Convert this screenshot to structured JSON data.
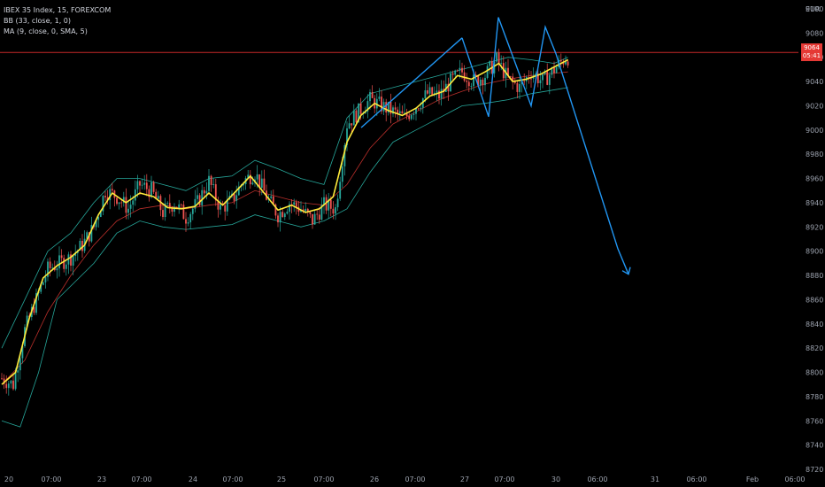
{
  "legend": {
    "symbol": "IBEX 35 Index, 15, FOREXCOM",
    "bb": "BB (33, close, 1, 0)",
    "ma": "MA (9, close, 0, SMA, 5)"
  },
  "currency": "EUR",
  "last_price": {
    "value": "9064",
    "countdown": "05:41"
  },
  "colors": {
    "up": "#26a69a",
    "down": "#ef5350",
    "ma": "#ffeb3b",
    "bb_band": "#26a69a",
    "bb_basis": "#e53935",
    "drawing": "#2196f3",
    "price_line": "#c62828",
    "axis_text": "#9ba1ad"
  },
  "chart_data": {
    "type": "candlestick",
    "ylim": [
      8720,
      9100
    ],
    "y_ticks": [
      9100,
      9080,
      9060,
      9040,
      9020,
      9000,
      8980,
      8960,
      8940,
      8920,
      8900,
      8880,
      8860,
      8840,
      8820,
      8800,
      8780,
      8760,
      8740,
      8720
    ],
    "x_ticks": [
      "20",
      "07:00",
      "23",
      "07:00",
      "24",
      "07:00",
      "25",
      "07:00",
      "26",
      "07:00",
      "27",
      "07:00",
      "30",
      "06:00",
      "31",
      "06:00",
      "Feb",
      "06:00"
    ],
    "last_price": 9064,
    "price_path": [
      [
        0,
        8795
      ],
      [
        5,
        8790
      ],
      [
        10,
        8835
      ],
      [
        15,
        8860
      ],
      [
        20,
        8885
      ],
      [
        25,
        8890
      ],
      [
        30,
        8895
      ],
      [
        35,
        8905
      ],
      [
        40,
        8920
      ],
      [
        45,
        8950
      ],
      [
        50,
        8945
      ],
      [
        55,
        8935
      ],
      [
        60,
        8955
      ],
      [
        65,
        8950
      ],
      [
        70,
        8932
      ],
      [
        75,
        8940
      ],
      [
        80,
        8928
      ],
      [
        85,
        8940
      ],
      [
        90,
        8958
      ],
      [
        95,
        8935
      ],
      [
        100,
        8942
      ],
      [
        105,
        8958
      ],
      [
        110,
        8965
      ],
      [
        115,
        8945
      ],
      [
        120,
        8930
      ],
      [
        125,
        8940
      ],
      [
        130,
        8935
      ],
      [
        135,
        8925
      ],
      [
        140,
        8938
      ],
      [
        145,
        8935
      ],
      [
        150,
        9005
      ],
      [
        155,
        9015
      ],
      [
        160,
        9025
      ],
      [
        165,
        9020
      ],
      [
        170,
        9015
      ],
      [
        175,
        9010
      ],
      [
        180,
        9020
      ],
      [
        185,
        9030
      ],
      [
        190,
        9028
      ],
      [
        195,
        9040
      ],
      [
        200,
        9048
      ],
      [
        205,
        9040
      ],
      [
        210,
        9045
      ],
      [
        215,
        9058
      ],
      [
        220,
        9042
      ],
      [
        225,
        9035
      ],
      [
        230,
        9048
      ],
      [
        235,
        9040
      ],
      [
        240,
        9050
      ],
      [
        245,
        9060
      ]
    ],
    "ma_points": [
      [
        0,
        8790
      ],
      [
        6,
        8800
      ],
      [
        12,
        8845
      ],
      [
        18,
        8878
      ],
      [
        24,
        8888
      ],
      [
        30,
        8895
      ],
      [
        36,
        8905
      ],
      [
        42,
        8930
      ],
      [
        48,
        8948
      ],
      [
        54,
        8940
      ],
      [
        60,
        8948
      ],
      [
        66,
        8945
      ],
      [
        72,
        8936
      ],
      [
        78,
        8935
      ],
      [
        84,
        8937
      ],
      [
        90,
        8948
      ],
      [
        96,
        8938
      ],
      [
        102,
        8950
      ],
      [
        108,
        8962
      ],
      [
        114,
        8948
      ],
      [
        120,
        8934
      ],
      [
        126,
        8938
      ],
      [
        132,
        8932
      ],
      [
        138,
        8935
      ],
      [
        144,
        8945
      ],
      [
        150,
        8990
      ],
      [
        156,
        9012
      ],
      [
        162,
        9022
      ],
      [
        168,
        9016
      ],
      [
        174,
        9012
      ],
      [
        180,
        9018
      ],
      [
        186,
        9028
      ],
      [
        192,
        9032
      ],
      [
        198,
        9045
      ],
      [
        204,
        9042
      ],
      [
        210,
        9048
      ],
      [
        216,
        9055
      ],
      [
        222,
        9040
      ],
      [
        228,
        9042
      ],
      [
        234,
        9046
      ],
      [
        240,
        9052
      ],
      [
        246,
        9058
      ]
    ],
    "bb_upper": [
      [
        0,
        8820
      ],
      [
        10,
        8860
      ],
      [
        20,
        8900
      ],
      [
        30,
        8915
      ],
      [
        40,
        8940
      ],
      [
        50,
        8960
      ],
      [
        60,
        8960
      ],
      [
        70,
        8955
      ],
      [
        80,
        8950
      ],
      [
        90,
        8960
      ],
      [
        100,
        8962
      ],
      [
        110,
        8975
      ],
      [
        120,
        8968
      ],
      [
        130,
        8960
      ],
      [
        140,
        8955
      ],
      [
        150,
        9010
      ],
      [
        160,
        9030
      ],
      [
        170,
        9035
      ],
      [
        180,
        9040
      ],
      [
        190,
        9045
      ],
      [
        200,
        9050
      ],
      [
        210,
        9055
      ],
      [
        220,
        9060
      ],
      [
        230,
        9058
      ],
      [
        240,
        9055
      ],
      [
        246,
        9060
      ]
    ],
    "bb_lower": [
      [
        0,
        8760
      ],
      [
        8,
        8755
      ],
      [
        16,
        8800
      ],
      [
        24,
        8860
      ],
      [
        32,
        8875
      ],
      [
        40,
        8890
      ],
      [
        50,
        8915
      ],
      [
        60,
        8925
      ],
      [
        70,
        8920
      ],
      [
        80,
        8918
      ],
      [
        90,
        8920
      ],
      [
        100,
        8922
      ],
      [
        110,
        8930
      ],
      [
        120,
        8925
      ],
      [
        130,
        8920
      ],
      [
        140,
        8925
      ],
      [
        150,
        8935
      ],
      [
        160,
        8965
      ],
      [
        170,
        8990
      ],
      [
        180,
        9000
      ],
      [
        190,
        9010
      ],
      [
        200,
        9020
      ],
      [
        210,
        9022
      ],
      [
        220,
        9025
      ],
      [
        230,
        9030
      ],
      [
        246,
        9035
      ]
    ],
    "bb_basis": [
      [
        0,
        8790
      ],
      [
        10,
        8810
      ],
      [
        20,
        8850
      ],
      [
        30,
        8880
      ],
      [
        40,
        8905
      ],
      [
        50,
        8925
      ],
      [
        60,
        8935
      ],
      [
        70,
        8938
      ],
      [
        80,
        8935
      ],
      [
        90,
        8938
      ],
      [
        100,
        8940
      ],
      [
        110,
        8950
      ],
      [
        120,
        8945
      ],
      [
        130,
        8940
      ],
      [
        140,
        8938
      ],
      [
        150,
        8955
      ],
      [
        160,
        8985
      ],
      [
        170,
        9005
      ],
      [
        180,
        9015
      ],
      [
        190,
        9025
      ],
      [
        200,
        9032
      ],
      [
        210,
        9038
      ],
      [
        220,
        9042
      ],
      [
        230,
        9045
      ],
      [
        246,
        9048
      ]
    ],
    "drawings": {
      "rising_line": [
        [
          408,
          9002
        ],
        [
          522,
          9076
        ]
      ],
      "zigzag": [
        [
          522,
          9076
        ],
        [
          552,
          9011
        ],
        [
          563,
          9093
        ],
        [
          600,
          9020
        ],
        [
          616,
          9085
        ],
        [
          628,
          9063
        ],
        [
          698,
          8902
        ],
        [
          710,
          8881
        ]
      ]
    }
  }
}
